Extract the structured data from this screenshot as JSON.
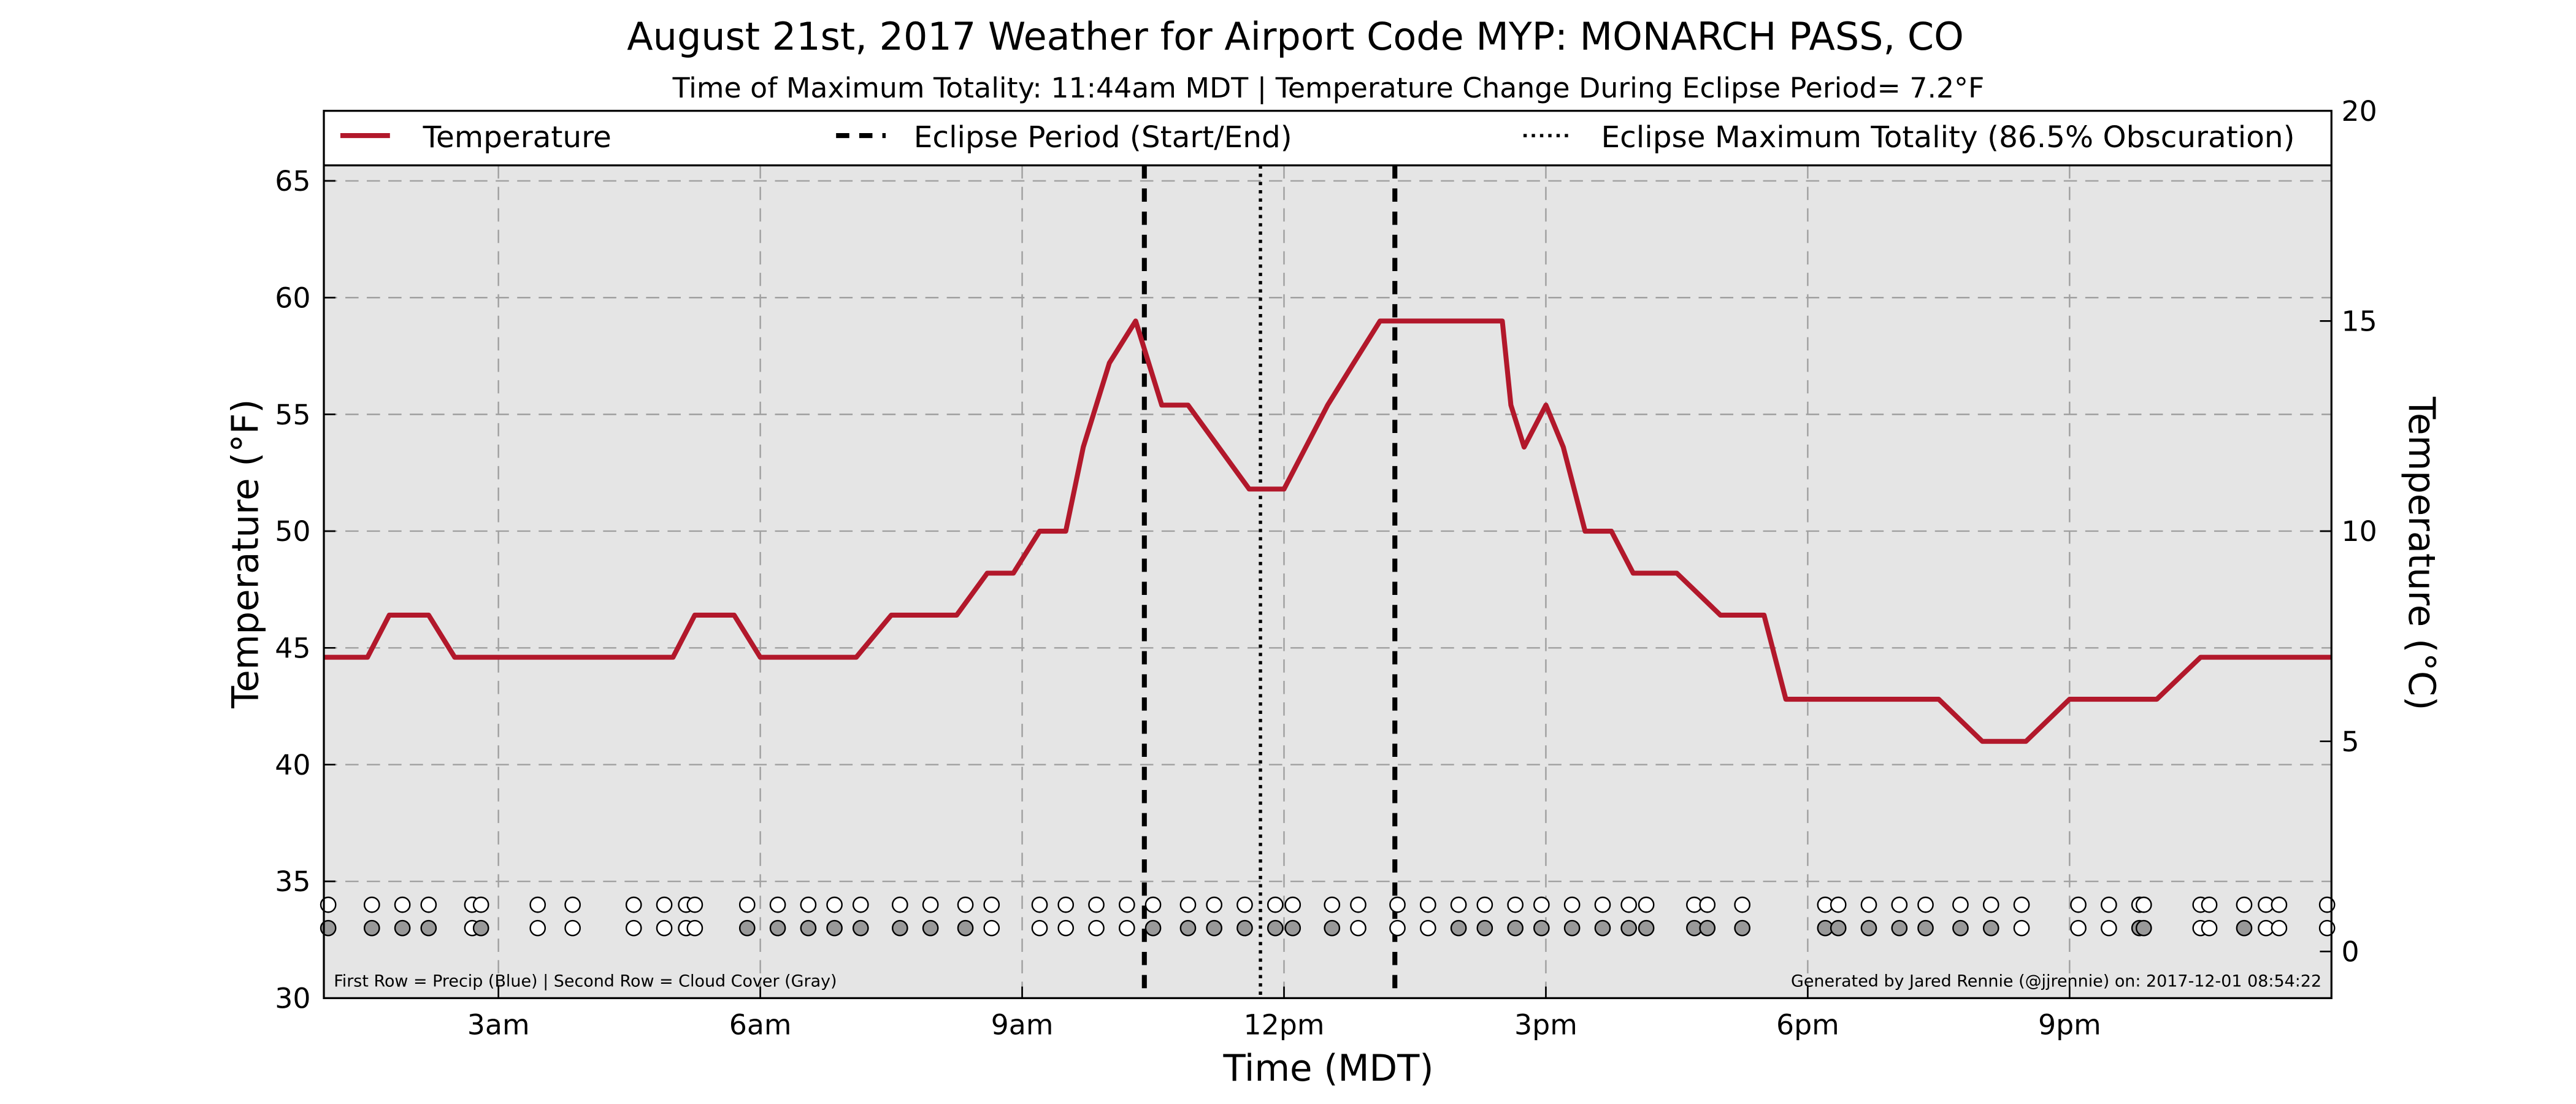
{
  "chart_data": {
    "type": "line",
    "title": "August 21st, 2017 Weather for Airport Code MYP: MONARCH PASS, CO",
    "subtitle": "Time of Maximum Totality: 11:44am MDT | Temperature Change During Eclipse Period= 7.2°F",
    "xlabel": "Time (MDT)",
    "ylabel": "Temperature (°F)",
    "y2label": "Temperature (°C)",
    "xlim": [
      1.0,
      24.0
    ],
    "ylim": [
      30,
      68
    ],
    "y2lim": [
      -1.11,
      20.0
    ],
    "x_ticks": [
      {
        "x": 3,
        "label": "3am"
      },
      {
        "x": 6,
        "label": "6am"
      },
      {
        "x": 9,
        "label": "9am"
      },
      {
        "x": 12,
        "label": "12pm"
      },
      {
        "x": 15,
        "label": "3pm"
      },
      {
        "x": 18,
        "label": "6pm"
      },
      {
        "x": 21,
        "label": "9pm"
      }
    ],
    "y_ticks": [
      30,
      35,
      40,
      45,
      50,
      55,
      60,
      65
    ],
    "y2_ticks": [
      0,
      5,
      10,
      15,
      20
    ],
    "grid": true,
    "legend_position": "top",
    "legend": [
      {
        "label": "Temperature",
        "style": "solid"
      },
      {
        "label": "Eclipse Period (Start/End)",
        "style": "dashed"
      },
      {
        "label": "Eclipse Maximum Totality (86.5% Obscuration)",
        "style": "dotted"
      }
    ],
    "series": [
      {
        "name": "Temperature",
        "color": "#b2182b",
        "x": [
          1.0,
          1.5,
          1.75,
          2.2,
          2.5,
          3.0,
          3.5,
          4.0,
          4.5,
          5.0,
          5.25,
          5.7,
          6.0,
          6.5,
          6.8,
          7.1,
          7.5,
          8.0,
          8.25,
          8.6,
          8.9,
          9.2,
          9.5,
          9.7,
          10.0,
          10.3,
          10.6,
          10.75,
          10.9,
          11.25,
          11.6,
          11.9,
          12.0,
          12.25,
          12.5,
          12.8,
          13.1,
          13.35,
          13.6,
          14.0,
          14.5,
          14.6,
          14.75,
          15.0,
          15.2,
          15.45,
          15.75,
          16.0,
          16.25,
          16.5,
          17.0,
          17.5,
          17.75,
          18.0,
          18.25,
          18.5,
          18.75,
          19.0,
          19.5,
          20.0,
          20.5,
          21.0,
          21.5,
          22.0,
          22.5,
          23.0,
          23.5,
          24.0
        ],
        "y": [
          44.6,
          44.6,
          46.4,
          46.4,
          44.6,
          44.6,
          44.6,
          44.6,
          44.6,
          44.6,
          46.4,
          46.4,
          44.6,
          44.6,
          44.6,
          44.6,
          46.4,
          46.4,
          46.4,
          48.2,
          48.2,
          50.0,
          50.0,
          53.6,
          57.2,
          59.0,
          55.4,
          55.4,
          55.4,
          53.6,
          51.8,
          51.8,
          51.8,
          53.6,
          55.4,
          57.2,
          59.0,
          59.0,
          59.0,
          59.0,
          59.0,
          55.4,
          53.6,
          55.4,
          53.6,
          50.0,
          50.0,
          48.2,
          48.2,
          48.2,
          46.4,
          46.4,
          42.8,
          42.8,
          42.8,
          42.8,
          42.8,
          42.8,
          42.8,
          41.0,
          41.0,
          42.8,
          42.8,
          42.8,
          44.6,
          44.6,
          44.6,
          44.6
        ]
      }
    ],
    "eclipse": {
      "start": 10.4,
      "max": 11.73,
      "end": 13.27
    },
    "markers": {
      "precip_row_y": 34,
      "cloud_row_y": 33,
      "times": [
        1.05,
        1.55,
        1.9,
        2.2,
        2.7,
        2.8,
        3.45,
        3.85,
        4.55,
        4.9,
        5.15,
        5.25,
        5.85,
        6.2,
        6.55,
        6.85,
        7.15,
        7.6,
        7.95,
        8.35,
        8.65,
        9.2,
        9.5,
        9.85,
        10.2,
        10.5,
        10.9,
        11.2,
        11.55,
        11.9,
        12.1,
        12.55,
        12.85,
        13.3,
        13.65,
        14.0,
        14.3,
        14.65,
        14.95,
        15.3,
        15.65,
        15.95,
        16.15,
        16.7,
        16.85,
        17.25,
        18.2,
        18.35,
        18.7,
        19.05,
        19.35,
        19.75,
        20.1,
        20.45,
        21.1,
        21.45,
        21.8,
        21.85,
        22.5,
        22.6,
        23.0,
        23.25,
        23.4,
        23.95
      ],
      "cloud_filled": [
        true,
        true,
        true,
        true,
        false,
        true,
        false,
        false,
        false,
        false,
        false,
        false,
        true,
        true,
        true,
        true,
        true,
        true,
        true,
        true,
        false,
        false,
        false,
        false,
        false,
        true,
        true,
        true,
        true,
        true,
        true,
        true,
        false,
        false,
        false,
        true,
        true,
        true,
        true,
        true,
        true,
        true,
        true,
        true,
        true,
        true,
        true,
        true,
        true,
        true,
        true,
        true,
        true,
        false,
        false,
        false,
        true,
        true,
        false,
        false,
        true,
        false,
        false,
        false
      ],
      "precip_color": "#ffffff",
      "cloud_fill_color": "#999999"
    },
    "footer_left": "First Row = Precip (Blue) | Second Row = Cloud Cover (Gray)",
    "footer_right": "Generated by Jared Rennie (@jjrennie) on: 2017-12-01 08:54:22"
  }
}
